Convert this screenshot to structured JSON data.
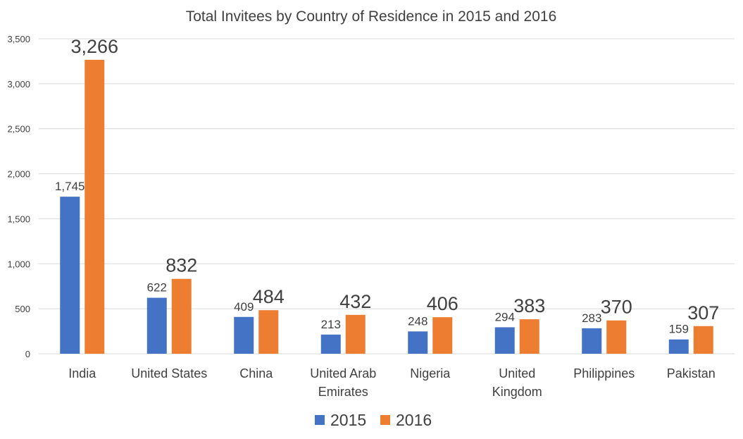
{
  "chart_data": {
    "type": "bar",
    "title": "Total Invitees by Country of Residence in 2015 and 2016",
    "xlabel": "",
    "ylabel": "",
    "ylim": [
      0,
      3500
    ],
    "yticks": [
      0,
      500,
      1000,
      1500,
      2000,
      2500,
      3000,
      3500
    ],
    "ytick_labels": [
      "0",
      "500",
      "1,000",
      "1,500",
      "2,000",
      "2,500",
      "3,000",
      "3,500"
    ],
    "grid": true,
    "legend_position": "bottom",
    "categories": [
      [
        "India"
      ],
      [
        "United States"
      ],
      [
        "China"
      ],
      [
        "United Arab",
        "Emirates"
      ],
      [
        "Nigeria"
      ],
      [
        "United",
        "Kingdom"
      ],
      [
        "Philippines"
      ],
      [
        "Pakistan"
      ]
    ],
    "series": [
      {
        "name": "2015",
        "color": "#4472c4",
        "values": [
          1745,
          622,
          409,
          213,
          248,
          294,
          283,
          159
        ],
        "labels": [
          "1,745",
          "622",
          "409",
          "213",
          "248",
          "294",
          "283",
          "159"
        ]
      },
      {
        "name": "2016",
        "color": "#ed7d31",
        "values": [
          3266,
          832,
          484,
          432,
          406,
          383,
          370,
          307
        ],
        "labels": [
          "3,266",
          "832",
          "484",
          "432",
          "406",
          "383",
          "370",
          "307"
        ]
      }
    ]
  }
}
